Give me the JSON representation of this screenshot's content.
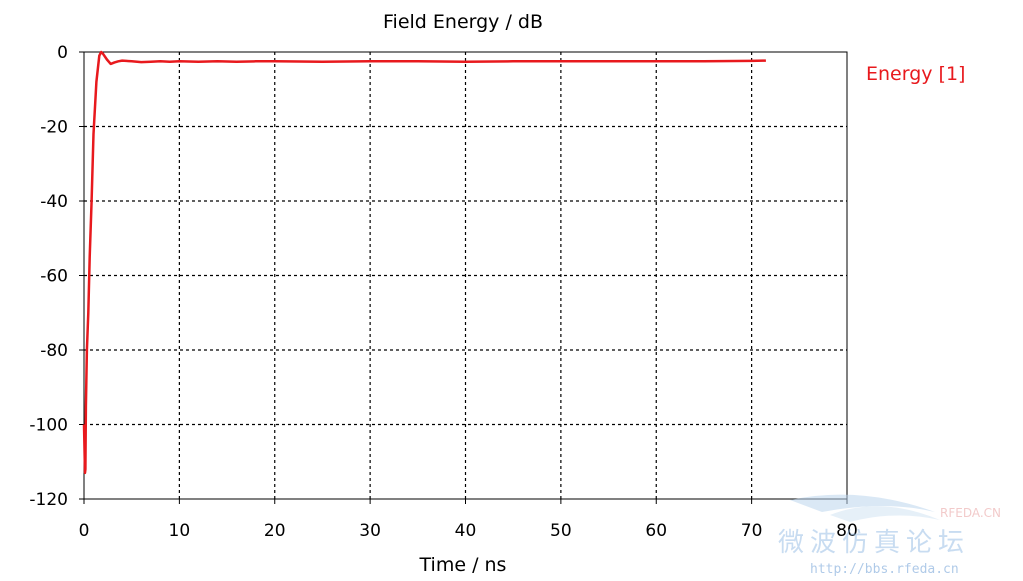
{
  "chart_data": {
    "type": "line",
    "title": "Field Energy / dB",
    "xlabel": "Time / ns",
    "ylabel": "",
    "xlim": [
      0,
      80
    ],
    "ylim": [
      -120,
      0
    ],
    "x_ticks": [
      0,
      10,
      20,
      30,
      40,
      50,
      60,
      70,
      80
    ],
    "y_ticks": [
      0,
      -20,
      -40,
      -60,
      -80,
      -100,
      -120
    ],
    "grid": true,
    "legend_position": "right",
    "series": [
      {
        "name": "Energy [1]",
        "color": "#e8191d",
        "x": [
          0.0,
          0.1,
          0.15,
          0.2,
          0.3,
          0.45,
          0.6,
          0.8,
          1.0,
          1.3,
          1.6,
          1.8,
          2.0,
          2.4,
          2.8,
          3.2,
          3.6,
          4.0,
          5,
          6,
          7,
          8,
          9,
          10,
          12,
          14,
          16,
          18,
          20,
          25,
          30,
          35,
          40,
          45,
          50,
          55,
          60,
          65,
          70,
          71.5
        ],
        "y": [
          -100,
          -113,
          -112,
          -95,
          -80,
          -70,
          -55,
          -40,
          -22,
          -8,
          -1,
          0,
          -0.5,
          -2,
          -3.2,
          -2.8,
          -2.5,
          -2.3,
          -2.5,
          -2.7,
          -2.6,
          -2.5,
          -2.6,
          -2.5,
          -2.6,
          -2.5,
          -2.6,
          -2.5,
          -2.5,
          -2.6,
          -2.5,
          -2.5,
          -2.6,
          -2.5,
          -2.5,
          -2.5,
          -2.5,
          -2.5,
          -2.4,
          -2.3
        ]
      }
    ]
  },
  "watermark": {
    "site": "RFEDA.CN",
    "cn_text": "微波仿真论坛",
    "url": "http://bbs.rfeda.cn"
  }
}
